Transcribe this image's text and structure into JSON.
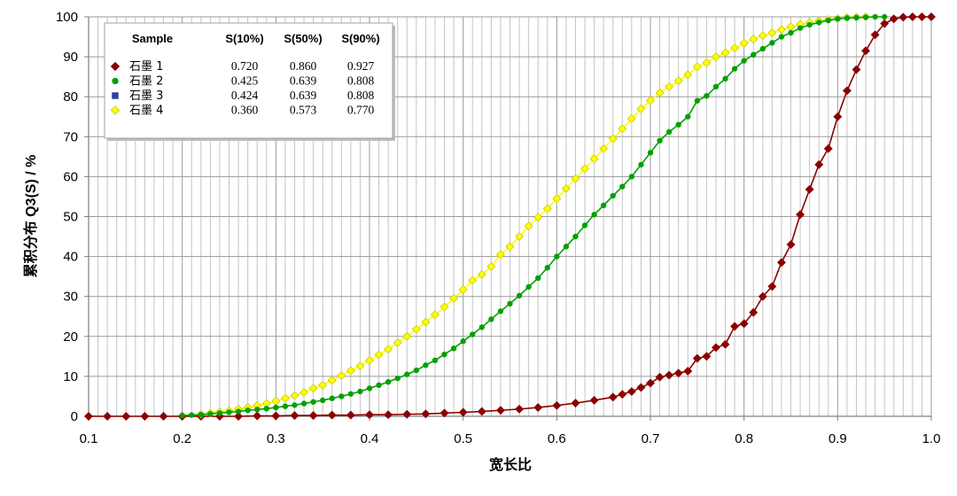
{
  "chart_data": {
    "type": "line",
    "title": "",
    "xlabel": "宽长比",
    "ylabel": "累积分布 Q3(S) / %",
    "xlim": [
      0.1,
      1.0
    ],
    "ylim": [
      0,
      100
    ],
    "x_ticks": [
      "0.1",
      "0.2",
      "0.3",
      "0.4",
      "0.5",
      "0.6",
      "0.7",
      "0.8",
      "0.9",
      "1.0"
    ],
    "y_ticks": [
      "0",
      "10",
      "20",
      "30",
      "40",
      "50",
      "60",
      "70",
      "80",
      "90",
      "100"
    ],
    "grid": true,
    "legend": {
      "placement": "top-left",
      "headers": [
        "Sample",
        "S(10%)",
        "S(50%)",
        "S(90%)"
      ]
    },
    "series": [
      {
        "name": "石墨 1",
        "marker": "diamond",
        "color": "#8B0000",
        "s10": "0.720",
        "s50": "0.860",
        "s90": "0.927",
        "points": [
          [
            0.1,
            0
          ],
          [
            0.12,
            0
          ],
          [
            0.14,
            0
          ],
          [
            0.16,
            0
          ],
          [
            0.18,
            0
          ],
          [
            0.2,
            0
          ],
          [
            0.22,
            0
          ],
          [
            0.24,
            0
          ],
          [
            0.26,
            0
          ],
          [
            0.28,
            0.1
          ],
          [
            0.3,
            0.1
          ],
          [
            0.32,
            0.2
          ],
          [
            0.34,
            0.2
          ],
          [
            0.36,
            0.3
          ],
          [
            0.38,
            0.3
          ],
          [
            0.4,
            0.4
          ],
          [
            0.42,
            0.4
          ],
          [
            0.44,
            0.5
          ],
          [
            0.46,
            0.6
          ],
          [
            0.48,
            0.8
          ],
          [
            0.5,
            1.0
          ],
          [
            0.52,
            1.2
          ],
          [
            0.54,
            1.5
          ],
          [
            0.56,
            1.8
          ],
          [
            0.58,
            2.2
          ],
          [
            0.6,
            2.7
          ],
          [
            0.62,
            3.3
          ],
          [
            0.64,
            4.0
          ],
          [
            0.66,
            4.8
          ],
          [
            0.67,
            5.5
          ],
          [
            0.68,
            6.2
          ],
          [
            0.69,
            7.2
          ],
          [
            0.7,
            8.3
          ],
          [
            0.71,
            9.8
          ],
          [
            0.72,
            10.3
          ],
          [
            0.73,
            10.8
          ],
          [
            0.74,
            11.3
          ],
          [
            0.75,
            14.5
          ],
          [
            0.76,
            15.0
          ],
          [
            0.77,
            17.2
          ],
          [
            0.78,
            18.0
          ],
          [
            0.79,
            22.5
          ],
          [
            0.8,
            23.2
          ],
          [
            0.81,
            26.0
          ],
          [
            0.82,
            30.0
          ],
          [
            0.83,
            32.5
          ],
          [
            0.84,
            38.5
          ],
          [
            0.85,
            43.0
          ],
          [
            0.86,
            50.5
          ],
          [
            0.87,
            56.8
          ],
          [
            0.88,
            63.0
          ],
          [
            0.89,
            67.0
          ],
          [
            0.9,
            75.0
          ],
          [
            0.91,
            81.5
          ],
          [
            0.92,
            86.8
          ],
          [
            0.93,
            91.5
          ],
          [
            0.94,
            95.5
          ],
          [
            0.95,
            98.3
          ],
          [
            0.96,
            99.5
          ],
          [
            0.97,
            99.9
          ],
          [
            0.98,
            100
          ],
          [
            0.99,
            100
          ],
          [
            1.0,
            100
          ]
        ]
      },
      {
        "name": "石墨 2",
        "marker": "circle",
        "color": "#00A000",
        "s10": "0.425",
        "s50": "0.639",
        "s90": "0.808",
        "points": [
          [
            0.2,
            0.2
          ],
          [
            0.21,
            0.3
          ],
          [
            0.22,
            0.4
          ],
          [
            0.23,
            0.6
          ],
          [
            0.24,
            0.8
          ],
          [
            0.25,
            1.0
          ],
          [
            0.26,
            1.2
          ],
          [
            0.27,
            1.5
          ],
          [
            0.28,
            1.7
          ],
          [
            0.29,
            1.9
          ],
          [
            0.3,
            2.2
          ],
          [
            0.31,
            2.5
          ],
          [
            0.32,
            2.8
          ],
          [
            0.33,
            3.2
          ],
          [
            0.34,
            3.6
          ],
          [
            0.35,
            4.0
          ],
          [
            0.36,
            4.5
          ],
          [
            0.37,
            5.0
          ],
          [
            0.38,
            5.6
          ],
          [
            0.39,
            6.2
          ],
          [
            0.4,
            7.0
          ],
          [
            0.41,
            7.8
          ],
          [
            0.42,
            8.6
          ],
          [
            0.43,
            9.5
          ],
          [
            0.44,
            10.5
          ],
          [
            0.45,
            11.5
          ],
          [
            0.46,
            12.8
          ],
          [
            0.47,
            14.0
          ],
          [
            0.48,
            15.5
          ],
          [
            0.49,
            17.0
          ],
          [
            0.5,
            18.8
          ],
          [
            0.51,
            20.5
          ],
          [
            0.52,
            22.3
          ],
          [
            0.53,
            24.3
          ],
          [
            0.54,
            26.3
          ],
          [
            0.55,
            28.2
          ],
          [
            0.56,
            30.2
          ],
          [
            0.57,
            32.4
          ],
          [
            0.58,
            34.6
          ],
          [
            0.59,
            37.2
          ],
          [
            0.6,
            40.0
          ],
          [
            0.61,
            42.5
          ],
          [
            0.62,
            45.0
          ],
          [
            0.63,
            47.8
          ],
          [
            0.64,
            50.5
          ],
          [
            0.65,
            52.8
          ],
          [
            0.66,
            55.2
          ],
          [
            0.67,
            57.5
          ],
          [
            0.68,
            60.0
          ],
          [
            0.69,
            63.0
          ],
          [
            0.7,
            66.0
          ],
          [
            0.71,
            69.0
          ],
          [
            0.72,
            71.2
          ],
          [
            0.73,
            73.0
          ],
          [
            0.74,
            75.0
          ],
          [
            0.75,
            79.0
          ],
          [
            0.76,
            80.2
          ],
          [
            0.77,
            82.5
          ],
          [
            0.78,
            84.5
          ],
          [
            0.79,
            87.0
          ],
          [
            0.8,
            89.0
          ],
          [
            0.81,
            90.5
          ],
          [
            0.82,
            92.0
          ],
          [
            0.83,
            93.5
          ],
          [
            0.84,
            95.0
          ],
          [
            0.85,
            96.0
          ],
          [
            0.86,
            97.2
          ],
          [
            0.87,
            98.0
          ],
          [
            0.88,
            98.6
          ],
          [
            0.89,
            99.1
          ],
          [
            0.9,
            99.5
          ],
          [
            0.91,
            99.7
          ],
          [
            0.92,
            99.8
          ],
          [
            0.93,
            99.9
          ],
          [
            0.94,
            100
          ],
          [
            0.95,
            100
          ]
        ]
      },
      {
        "name": "石墨 3",
        "marker": "square",
        "color": "#2F3E9E",
        "s10": "0.424",
        "s50": "0.639",
        "s90": "0.808",
        "points": []
      },
      {
        "name": "石墨 4",
        "marker": "diamond",
        "color": "#FFFF00",
        "s10": "0.360",
        "s50": "0.573",
        "s90": "0.770",
        "points": [
          [
            0.22,
            0.5
          ],
          [
            0.23,
            0.8
          ],
          [
            0.24,
            1.1
          ],
          [
            0.25,
            1.4
          ],
          [
            0.26,
            1.8
          ],
          [
            0.27,
            2.2
          ],
          [
            0.28,
            2.7
          ],
          [
            0.29,
            3.2
          ],
          [
            0.3,
            3.8
          ],
          [
            0.31,
            4.5
          ],
          [
            0.32,
            5.2
          ],
          [
            0.33,
            6.0
          ],
          [
            0.34,
            7.0
          ],
          [
            0.35,
            7.8
          ],
          [
            0.36,
            9.0
          ],
          [
            0.37,
            10.2
          ],
          [
            0.38,
            11.4
          ],
          [
            0.39,
            12.6
          ],
          [
            0.4,
            14.0
          ],
          [
            0.41,
            15.4
          ],
          [
            0.42,
            16.8
          ],
          [
            0.43,
            18.4
          ],
          [
            0.44,
            20.0
          ],
          [
            0.45,
            21.8
          ],
          [
            0.46,
            23.6
          ],
          [
            0.47,
            25.4
          ],
          [
            0.48,
            27.4
          ],
          [
            0.49,
            29.5
          ],
          [
            0.5,
            31.7
          ],
          [
            0.51,
            34.0
          ],
          [
            0.52,
            35.5
          ],
          [
            0.53,
            37.5
          ],
          [
            0.54,
            40.5
          ],
          [
            0.55,
            42.5
          ],
          [
            0.56,
            45.0
          ],
          [
            0.57,
            47.6
          ],
          [
            0.58,
            49.8
          ],
          [
            0.59,
            52.0
          ],
          [
            0.6,
            54.5
          ],
          [
            0.61,
            57.0
          ],
          [
            0.62,
            59.5
          ],
          [
            0.63,
            62.0
          ],
          [
            0.64,
            64.5
          ],
          [
            0.65,
            67.0
          ],
          [
            0.66,
            69.5
          ],
          [
            0.67,
            72.0
          ],
          [
            0.68,
            74.5
          ],
          [
            0.69,
            77.0
          ],
          [
            0.7,
            79.0
          ],
          [
            0.71,
            81.0
          ],
          [
            0.72,
            82.5
          ],
          [
            0.73,
            84.0
          ],
          [
            0.74,
            85.5
          ],
          [
            0.75,
            87.5
          ],
          [
            0.76,
            88.5
          ],
          [
            0.77,
            90.0
          ],
          [
            0.78,
            91.0
          ],
          [
            0.79,
            92.2
          ],
          [
            0.8,
            93.4
          ],
          [
            0.81,
            94.4
          ],
          [
            0.82,
            95.3
          ],
          [
            0.83,
            96.0
          ],
          [
            0.84,
            96.8
          ],
          [
            0.85,
            97.5
          ],
          [
            0.86,
            98.1
          ],
          [
            0.87,
            98.6
          ],
          [
            0.88,
            99.0
          ],
          [
            0.89,
            99.3
          ],
          [
            0.9,
            99.6
          ],
          [
            0.91,
            99.8
          ],
          [
            0.92,
            99.9
          ],
          [
            0.93,
            100
          ]
        ]
      }
    ]
  }
}
